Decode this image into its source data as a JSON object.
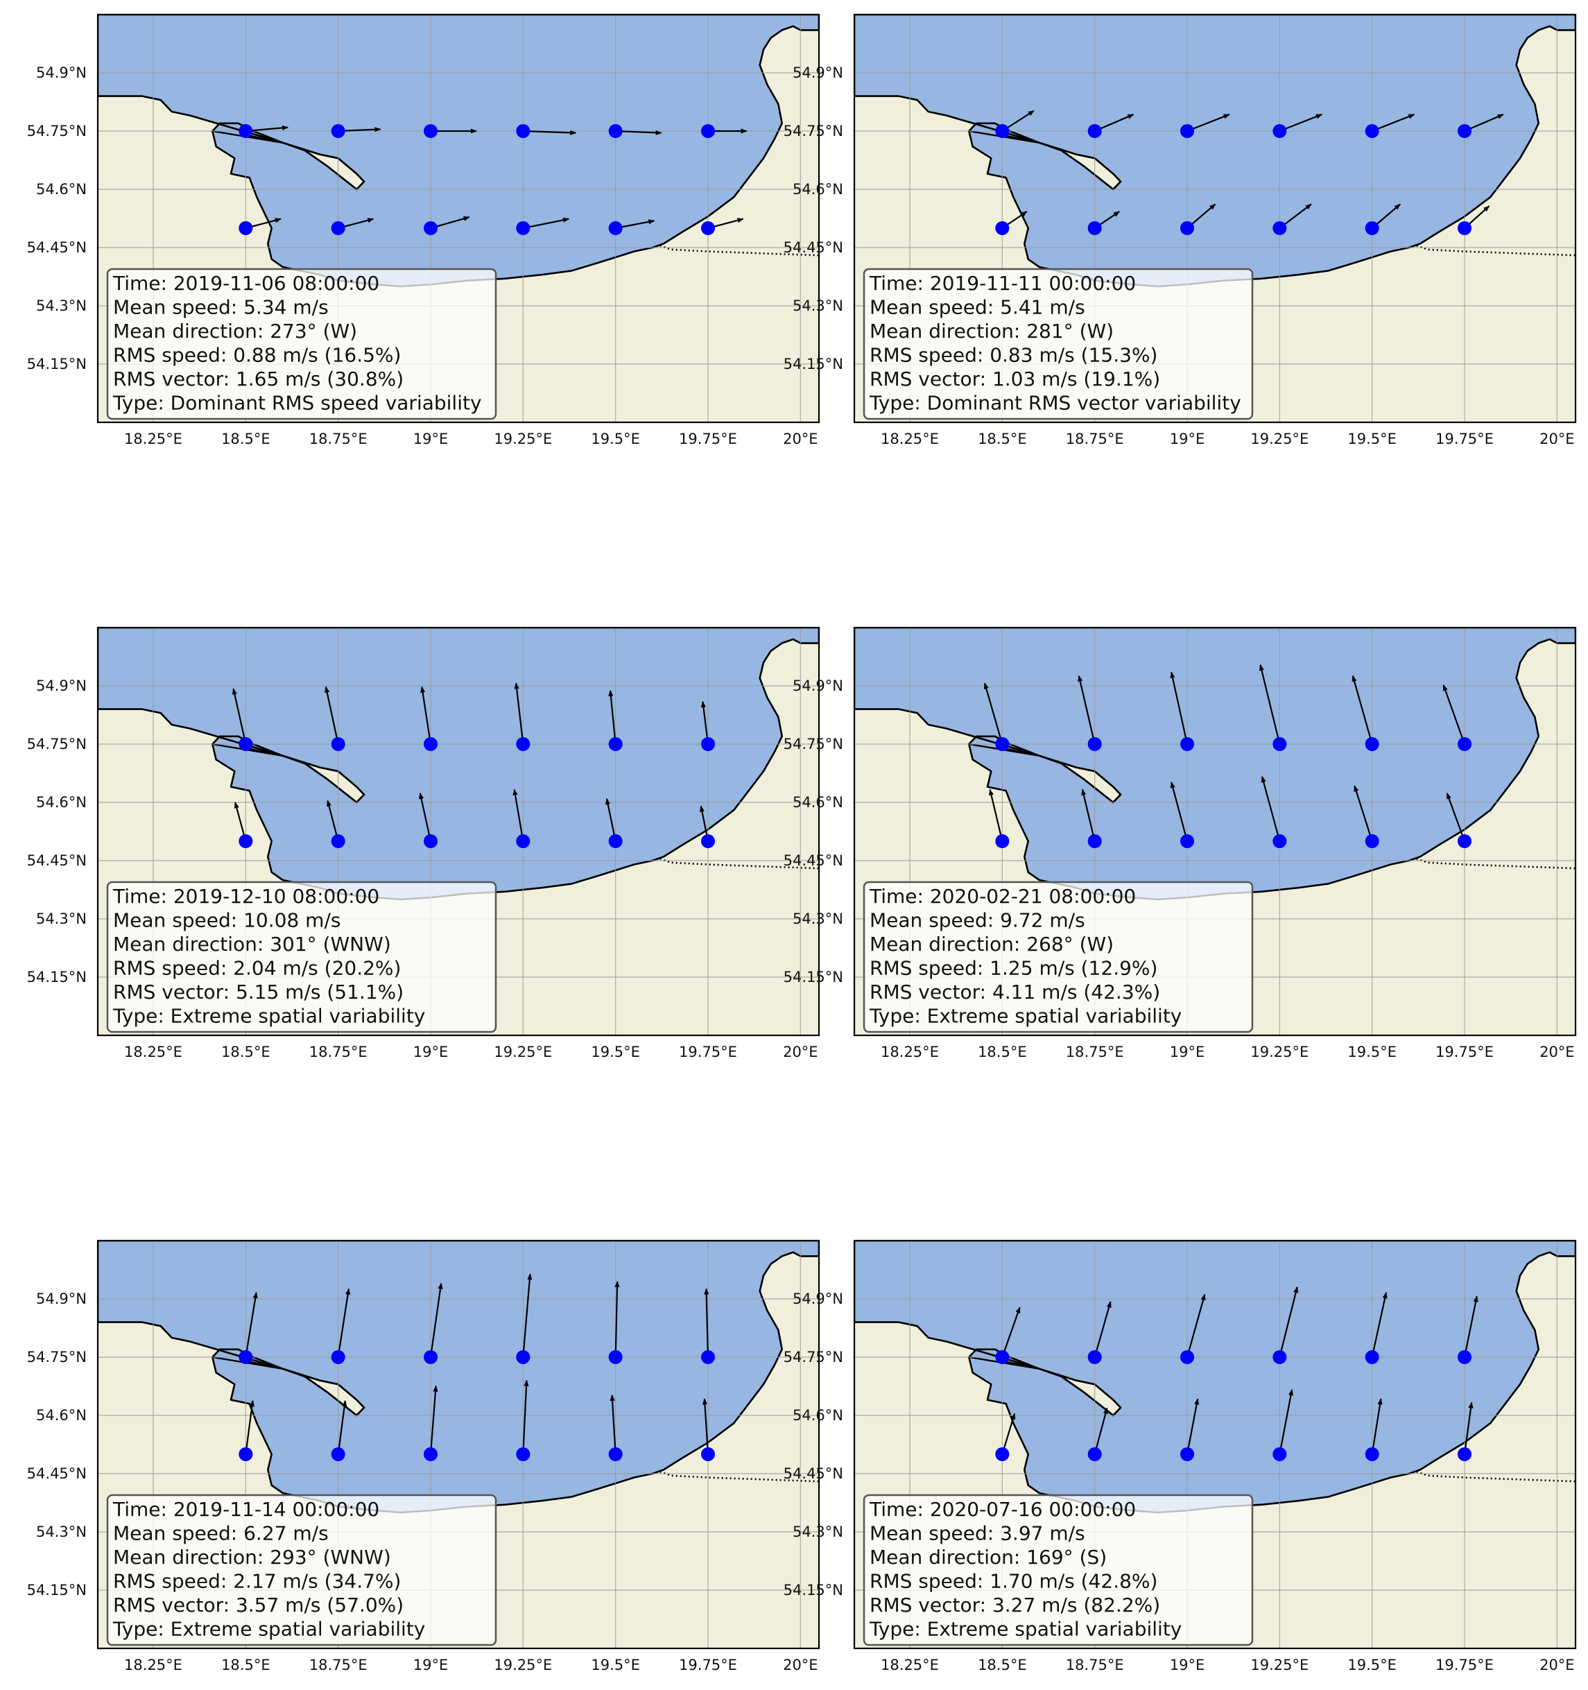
{
  "figure": {
    "colors": {
      "sea": "#97b6e1",
      "land": "#efefdb",
      "coast": "#000000",
      "grid": "#9a9a9a",
      "station": "#0000ff",
      "arrow": "#000000",
      "infobox_face": "#ffffff",
      "infobox_edge": "#555555"
    },
    "axes": {
      "lon_range": [
        18.1,
        20.05
      ],
      "lat_range": [
        54.0,
        55.05
      ],
      "lon_ticks": [
        18.25,
        18.5,
        18.75,
        19.0,
        19.25,
        19.5,
        19.75,
        20.0
      ],
      "lon_tick_labels": [
        "18.25°E",
        "18.5°E",
        "18.75°E",
        "19°E",
        "19.25°E",
        "19.5°E",
        "19.75°E",
        "20°E"
      ],
      "lat_ticks": [
        54.15,
        54.3,
        54.45,
        54.6,
        54.75,
        54.9
      ],
      "lat_tick_labels": [
        "54.15°N",
        "54.3°N",
        "54.45°N",
        "54.6°N",
        "54.75°N",
        "54.9°N"
      ],
      "grid": true
    },
    "stations": {
      "lons": [
        18.5,
        18.75,
        19.0,
        19.25,
        19.5,
        19.75
      ],
      "lats": [
        54.75,
        54.5
      ]
    },
    "coastline": {
      "sea_boundary_lonlat": [
        [
          18.1,
          54.84
        ],
        [
          18.22,
          54.84
        ],
        [
          18.27,
          54.83
        ],
        [
          18.3,
          54.8
        ],
        [
          18.35,
          54.79
        ],
        [
          18.6,
          54.72
        ],
        [
          18.7,
          54.69
        ],
        [
          18.75,
          54.68
        ],
        [
          18.8,
          54.64
        ],
        [
          18.82,
          54.62
        ],
        [
          18.8,
          54.6
        ],
        [
          18.76,
          54.63
        ],
        [
          18.72,
          54.66
        ],
        [
          18.66,
          54.7
        ],
        [
          18.6,
          54.72
        ],
        [
          18.52,
          54.75
        ],
        [
          18.48,
          54.77
        ],
        [
          18.43,
          54.77
        ],
        [
          18.41,
          54.75
        ],
        [
          18.42,
          54.71
        ],
        [
          18.47,
          54.68
        ],
        [
          18.46,
          54.64
        ],
        [
          18.51,
          54.63
        ],
        [
          18.53,
          54.58
        ],
        [
          18.55,
          54.54
        ],
        [
          18.57,
          54.5
        ],
        [
          18.56,
          54.46
        ],
        [
          18.57,
          54.42
        ],
        [
          18.6,
          54.4
        ],
        [
          18.65,
          54.39
        ],
        [
          18.7,
          54.38
        ],
        [
          18.75,
          54.365
        ],
        [
          18.8,
          54.36
        ],
        [
          18.85,
          54.355
        ],
        [
          18.92,
          54.35
        ],
        [
          19.0,
          54.355
        ],
        [
          19.1,
          54.365
        ],
        [
          19.2,
          54.37
        ],
        [
          19.3,
          54.38
        ],
        [
          19.38,
          54.39
        ],
        [
          19.45,
          54.41
        ],
        [
          19.5,
          54.425
        ],
        [
          19.55,
          54.44
        ],
        [
          19.6,
          54.45
        ],
        [
          19.63,
          54.46
        ],
        [
          19.68,
          54.49
        ],
        [
          19.75,
          54.53
        ],
        [
          19.82,
          54.58
        ],
        [
          19.86,
          54.63
        ],
        [
          19.9,
          54.68
        ],
        [
          19.93,
          54.73
        ],
        [
          19.95,
          54.77
        ],
        [
          19.94,
          54.82
        ],
        [
          19.91,
          54.87
        ],
        [
          19.89,
          54.92
        ],
        [
          19.9,
          54.96
        ],
        [
          19.92,
          54.99
        ],
        [
          19.95,
          55.01
        ],
        [
          19.98,
          55.02
        ],
        [
          20.0,
          55.01
        ],
        [
          20.05,
          55.01
        ],
        [
          20.05,
          55.05
        ],
        [
          18.1,
          55.05
        ]
      ],
      "spit_outline_lonlat": [
        [
          18.41,
          54.75
        ],
        [
          18.6,
          54.72
        ],
        [
          18.7,
          54.69
        ],
        [
          18.75,
          54.68
        ],
        [
          18.8,
          54.64
        ],
        [
          18.82,
          54.62
        ],
        [
          18.8,
          54.6
        ],
        [
          18.76,
          54.63
        ],
        [
          18.72,
          54.66
        ],
        [
          18.66,
          54.7
        ],
        [
          18.6,
          54.72
        ],
        [
          18.5,
          54.74
        ]
      ],
      "border_dotted_lonlat": [
        [
          19.62,
          54.455
        ],
        [
          19.65,
          54.445
        ],
        [
          19.75,
          54.44
        ],
        [
          19.9,
          54.435
        ],
        [
          20.05,
          54.43
        ]
      ]
    },
    "panels": [
      {
        "info": {
          "time": "Time: 2019-11-06 08:00:00",
          "mean_speed": "Mean speed: 5.34 m/s",
          "mean_direction": "Mean direction: 273° (W)",
          "rms_speed": "RMS speed: 0.88 m/s (16.5%)",
          "rms_vector": "RMS vector: 1.65 m/s (30.8%)",
          "type": "Type: Dominant RMS speed variability"
        },
        "vectors": {
          "north_row": [
            [
              0.12,
              0.01
            ],
            [
              0.12,
              0.005
            ],
            [
              0.13,
              0.0
            ],
            [
              0.15,
              -0.005
            ],
            [
              0.13,
              -0.005
            ],
            [
              0.11,
              0.0
            ]
          ],
          "south_row": [
            [
              0.1,
              0.025
            ],
            [
              0.1,
              0.025
            ],
            [
              0.11,
              0.03
            ],
            [
              0.13,
              0.025
            ],
            [
              0.11,
              0.02
            ],
            [
              0.1,
              0.025
            ]
          ]
        }
      },
      {
        "info": {
          "time": "Time: 2019-11-11 00:00:00",
          "mean_speed": "Mean speed: 5.41 m/s",
          "mean_direction": "Mean direction: 281° (W)",
          "rms_speed": "RMS speed: 0.83 m/s (15.3%)",
          "rms_vector": "RMS vector: 1.03 m/s (19.1%)",
          "type": "Type: Dominant RMS vector variability"
        },
        "vectors": {
          "north_row": [
            [
              0.09,
              0.055
            ],
            [
              0.11,
              0.045
            ],
            [
              0.12,
              0.045
            ],
            [
              0.12,
              0.045
            ],
            [
              0.12,
              0.045
            ],
            [
              0.11,
              0.045
            ]
          ],
          "south_row": [
            [
              0.07,
              0.045
            ],
            [
              0.07,
              0.045
            ],
            [
              0.08,
              0.065
            ],
            [
              0.09,
              0.065
            ],
            [
              0.08,
              0.065
            ],
            [
              0.07,
              0.06
            ]
          ]
        }
      },
      {
        "info": {
          "time": "Time: 2019-12-10 08:00:00",
          "mean_speed": "Mean speed: 10.08 m/s",
          "mean_direction": "Mean direction: 301° (WNW)",
          "rms_speed": "RMS speed: 2.04 m/s (20.2%)",
          "rms_vector": "RMS vector: 5.15 m/s (51.1%)",
          "type": "Type: Extreme spatial variability"
        },
        "vectors": {
          "north_row": [
            [
              -0.035,
              0.15
            ],
            [
              -0.035,
              0.155
            ],
            [
              -0.025,
              0.155
            ],
            [
              -0.02,
              0.165
            ],
            [
              -0.015,
              0.145
            ],
            [
              -0.015,
              0.115
            ]
          ],
          "south_row": [
            [
              -0.03,
              0.105
            ],
            [
              -0.03,
              0.11
            ],
            [
              -0.03,
              0.13
            ],
            [
              -0.025,
              0.14
            ],
            [
              -0.025,
              0.115
            ],
            [
              -0.02,
              0.095
            ]
          ]
        }
      },
      {
        "info": {
          "time": "Time: 2020-02-21 08:00:00",
          "mean_speed": "Mean speed: 9.72 m/s",
          "mean_direction": "Mean direction: 268° (W)",
          "rms_speed": "RMS speed: 1.25 m/s (12.9%)",
          "rms_vector": "RMS vector: 4.11 m/s (42.3%)",
          "type": "Type: Extreme spatial variability"
        },
        "vectors": {
          "north_row": [
            [
              -0.05,
              0.165
            ],
            [
              -0.045,
              0.185
            ],
            [
              -0.045,
              0.195
            ],
            [
              -0.055,
              0.215
            ],
            [
              -0.055,
              0.185
            ],
            [
              -0.06,
              0.16
            ]
          ],
          "south_row": [
            [
              -0.035,
              0.14
            ],
            [
              -0.035,
              0.14
            ],
            [
              -0.045,
              0.16
            ],
            [
              -0.05,
              0.175
            ],
            [
              -0.05,
              0.15
            ],
            [
              -0.05,
              0.13
            ]
          ]
        }
      },
      {
        "info": {
          "time": "Time: 2019-11-14 00:00:00",
          "mean_speed": "Mean speed: 6.27 m/s",
          "mean_direction": "Mean direction: 293° (WNW)",
          "rms_speed": "RMS speed: 2.17 m/s (34.7%)",
          "rms_vector": "RMS vector: 3.57 m/s (57.0%)",
          "type": "Type: Extreme spatial variability"
        },
        "vectors": {
          "north_row": [
            [
              0.03,
              0.175
            ],
            [
              0.03,
              0.185
            ],
            [
              0.03,
              0.2
            ],
            [
              0.02,
              0.225
            ],
            [
              0.005,
              0.205
            ],
            [
              -0.005,
              0.185
            ]
          ],
          "south_row": [
            [
              0.02,
              0.145
            ],
            [
              0.02,
              0.145
            ],
            [
              0.015,
              0.185
            ],
            [
              0.01,
              0.2
            ],
            [
              -0.01,
              0.16
            ],
            [
              -0.01,
              0.15
            ]
          ]
        }
      },
      {
        "info": {
          "time": "Time: 2020-07-16 00:00:00",
          "mean_speed": "Mean speed: 3.97 m/s",
          "mean_direction": "Mean direction: 169° (S)",
          "rms_speed": "RMS speed: 1.70 m/s (42.8%)",
          "rms_vector": "RMS vector: 3.27 m/s (82.2%)",
          "type": "Type: Extreme spatial variability"
        },
        "vectors": {
          "north_row": [
            [
              0.05,
              0.135
            ],
            [
              0.045,
              0.15
            ],
            [
              0.05,
              0.17
            ],
            [
              0.05,
              0.19
            ],
            [
              0.04,
              0.175
            ],
            [
              0.035,
              0.165
            ]
          ],
          "south_row": [
            [
              0.035,
              0.11
            ],
            [
              0.035,
              0.125
            ],
            [
              0.03,
              0.15
            ],
            [
              0.035,
              0.175
            ],
            [
              0.025,
              0.15
            ],
            [
              0.02,
              0.14
            ]
          ]
        }
      }
    ]
  }
}
